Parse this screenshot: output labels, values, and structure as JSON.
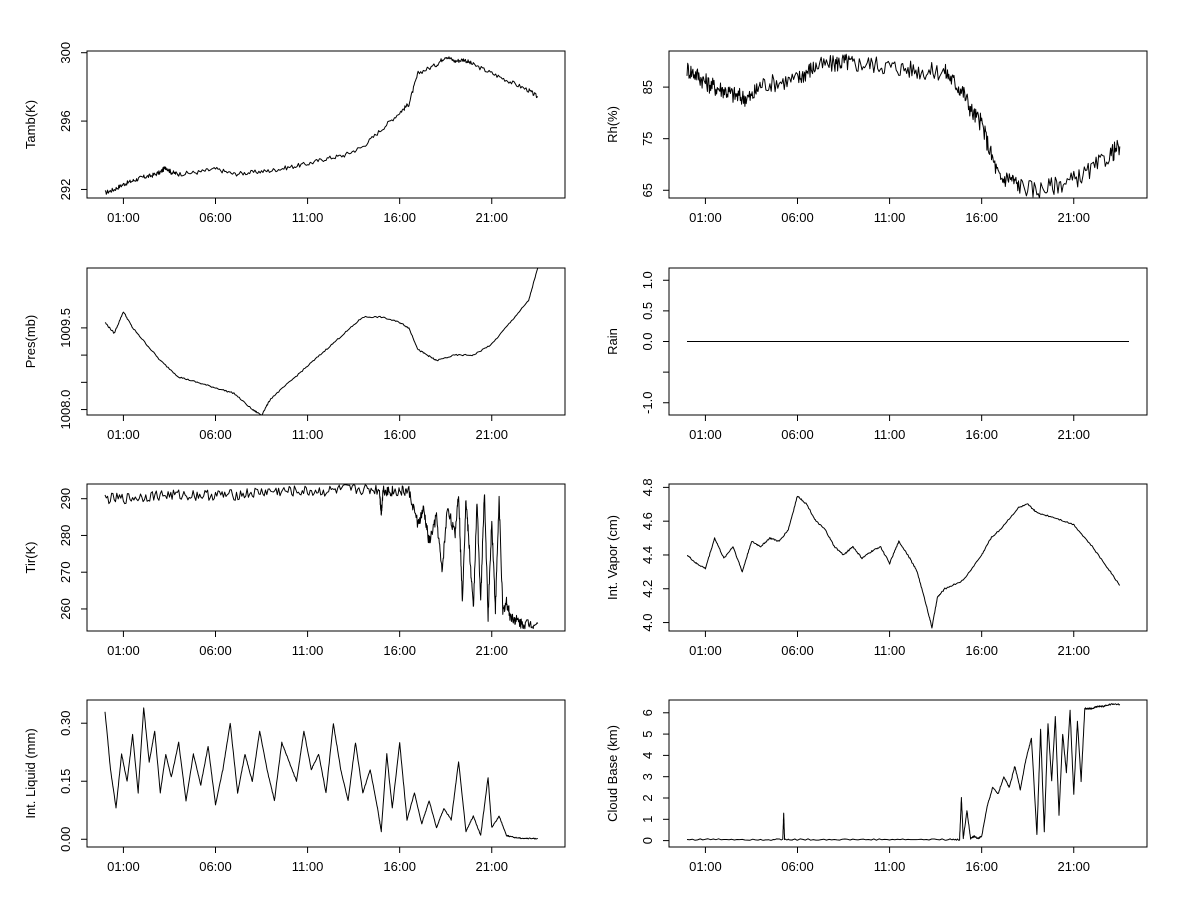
{
  "figure": {
    "x_ticks": [
      "01:00",
      "06:00",
      "11:00",
      "16:00",
      "21:00"
    ],
    "x_tick_hours": [
      1,
      6,
      11,
      16,
      21
    ],
    "x_range_hours": [
      0,
      24
    ]
  },
  "chart_data": [
    {
      "id": "tamb",
      "type": "line",
      "ylabel": "Tamb(K)",
      "ylim": [
        291.5,
        300.1
      ],
      "yticks": [
        292,
        296,
        300
      ],
      "ytick_labels": [
        "292",
        "296",
        "300"
      ],
      "series": [
        {
          "x": [
            0,
            0.5,
            1,
            1.5,
            2,
            2.5,
            3,
            3.3,
            3.6,
            4,
            5,
            6,
            7,
            8,
            9,
            10,
            11,
            12,
            13,
            14,
            15,
            16,
            16.5,
            17,
            18,
            18.5,
            19,
            19.5,
            20,
            21,
            22,
            23,
            23.5
          ],
          "values": [
            291.8,
            292.0,
            292.3,
            292.5,
            292.7,
            292.8,
            293.0,
            293.3,
            293.0,
            292.9,
            293.0,
            293.2,
            292.9,
            293.0,
            293.1,
            293.3,
            293.5,
            293.8,
            294.0,
            294.5,
            295.5,
            296.5,
            297.0,
            298.8,
            299.3,
            299.8,
            299.5,
            299.6,
            299.3,
            298.8,
            298.3,
            297.8,
            297.4
          ]
        }
      ]
    },
    {
      "id": "rh",
      "type": "line",
      "ylabel": "Rh(%)",
      "ylim": [
        63.5,
        92
      ],
      "yticks": [
        65,
        75,
        85
      ],
      "ytick_labels": [
        "65",
        "75",
        "85"
      ],
      "series": [
        {
          "x": [
            0,
            0.5,
            1,
            1.5,
            2,
            2.5,
            3,
            3.5,
            4,
            5,
            6,
            6.5,
            7,
            8,
            8.5,
            9,
            10,
            11,
            12,
            13,
            14,
            14.5,
            15,
            15.5,
            16,
            16.5,
            17,
            17.5,
            18,
            19,
            20,
            21,
            22,
            23,
            23.5
          ],
          "values": [
            88.5,
            87.5,
            86.0,
            85.0,
            84.5,
            83.5,
            83.0,
            83.0,
            85.5,
            86.0,
            86.5,
            88.0,
            89.0,
            89.5,
            90.0,
            89.5,
            89.5,
            89.0,
            88.5,
            88.0,
            88.0,
            86.0,
            84.0,
            80.0,
            78.0,
            72.0,
            67.0,
            67.5,
            66.0,
            65.0,
            66.0,
            67.0,
            69.0,
            72.0,
            73.5
          ]
        }
      ]
    },
    {
      "id": "pres",
      "type": "line",
      "ylabel": "Pres(mb)",
      "ylim": [
        1007.9,
        1010.6
      ],
      "yticks": [
        1008.0,
        1008.5,
        1009.0,
        1009.5
      ],
      "ytick_labels": [
        "1008.0",
        "",
        "",
        "1009.5"
      ],
      "series": [
        {
          "x": [
            0,
            0.5,
            1,
            1.5,
            2,
            3,
            4,
            5,
            6,
            7,
            8,
            8.5,
            9,
            10,
            11,
            12,
            13,
            14,
            15,
            16,
            16.5,
            17,
            17.5,
            18,
            19,
            20,
            21,
            22,
            23,
            23.5
          ],
          "values": [
            1009.6,
            1009.4,
            1009.8,
            1009.5,
            1009.3,
            1008.9,
            1008.6,
            1008.5,
            1008.4,
            1008.3,
            1008.0,
            1007.9,
            1008.2,
            1008.5,
            1008.8,
            1009.1,
            1009.4,
            1009.7,
            1009.7,
            1009.6,
            1009.5,
            1009.1,
            1009.0,
            1008.9,
            1009.0,
            1009.0,
            1009.2,
            1009.6,
            1010.0,
            1010.6
          ]
        }
      ]
    },
    {
      "id": "rain",
      "type": "line",
      "ylabel": "Rain",
      "ylim": [
        -1.2,
        1.2
      ],
      "yticks": [
        -1.0,
        -0.5,
        0.0,
        0.5,
        1.0
      ],
      "ytick_labels": [
        "-1.0",
        "",
        "0.0",
        "0.5",
        "1.0"
      ],
      "series": [
        {
          "x": [
            0,
            24
          ],
          "values": [
            0,
            0
          ]
        }
      ]
    },
    {
      "id": "tir",
      "type": "line",
      "ylabel": "Tir(K)",
      "ylim": [
        254,
        294
      ],
      "yticks": [
        260,
        270,
        280,
        290
      ],
      "ytick_labels": [
        "260",
        "270",
        "280",
        "290"
      ],
      "series": [
        {
          "x": [
            0,
            1,
            2,
            3,
            4,
            5,
            6,
            7,
            8,
            9,
            10,
            11,
            12,
            13,
            14,
            14.9,
            15,
            15.1,
            15.5,
            16,
            16.5,
            17,
            17.3,
            17.6,
            18,
            18.3,
            18.6,
            19,
            19.2,
            19.4,
            19.6,
            19.8,
            20,
            20.2,
            20.4,
            20.6,
            20.8,
            21,
            21.2,
            21.4,
            21.6,
            21.8,
            22,
            22.3,
            22.6,
            23,
            23.5
          ],
          "values": [
            290,
            290,
            290.5,
            291,
            291,
            291,
            291,
            291,
            291.5,
            292,
            292,
            292,
            292,
            292.5,
            292.5,
            292.5,
            286,
            292.5,
            292,
            292,
            292,
            283,
            287,
            278,
            285,
            270,
            288,
            280,
            292,
            262,
            290,
            275,
            260,
            289,
            262,
            292,
            258,
            284,
            260,
            290,
            259,
            262,
            258,
            257,
            256,
            256,
            256
          ]
        }
      ]
    },
    {
      "id": "vapor",
      "type": "line",
      "ylabel": "Int. Vapor (cm)",
      "ylim": [
        3.95,
        4.82
      ],
      "yticks": [
        4.0,
        4.2,
        4.4,
        4.6,
        4.8
      ],
      "ytick_labels": [
        "4.0",
        "4.2",
        "4.4",
        "4.6",
        "4.8"
      ],
      "series": [
        {
          "x": [
            0,
            0.5,
            1,
            1.5,
            2,
            2.5,
            3,
            3.5,
            4,
            4.5,
            5,
            5.5,
            6,
            6.5,
            7,
            7.5,
            8,
            8.5,
            9,
            9.5,
            10,
            10.5,
            11,
            11.5,
            12,
            12.5,
            13,
            13.3,
            13.6,
            14,
            15,
            16,
            16.5,
            17,
            18,
            18.5,
            19,
            20,
            21,
            22,
            23,
            23.5
          ],
          "values": [
            4.4,
            4.35,
            4.32,
            4.5,
            4.38,
            4.45,
            4.3,
            4.48,
            4.45,
            4.5,
            4.48,
            4.55,
            4.75,
            4.7,
            4.6,
            4.55,
            4.45,
            4.4,
            4.45,
            4.38,
            4.42,
            4.45,
            4.35,
            4.48,
            4.4,
            4.3,
            4.1,
            3.97,
            4.15,
            4.2,
            4.25,
            4.4,
            4.5,
            4.55,
            4.68,
            4.7,
            4.65,
            4.62,
            4.58,
            4.45,
            4.3,
            4.22
          ]
        }
      ]
    },
    {
      "id": "liquid",
      "type": "line",
      "ylabel": "Int. Liquid (mm)",
      "ylim": [
        -0.02,
        0.36
      ],
      "yticks": [
        0.0,
        0.15,
        0.3
      ],
      "ytick_labels": [
        "0.00",
        "0.15",
        "0.30"
      ],
      "series": [
        {
          "x": [
            0,
            0.3,
            0.6,
            0.9,
            1.2,
            1.5,
            1.8,
            2.1,
            2.4,
            2.7,
            3,
            3.3,
            3.6,
            4,
            4.4,
            4.8,
            5.2,
            5.6,
            6,
            6.4,
            6.8,
            7.2,
            7.6,
            8,
            8.4,
            8.8,
            9.2,
            9.6,
            10,
            10.4,
            10.8,
            11.2,
            11.6,
            12,
            12.4,
            12.8,
            13.2,
            13.6,
            14,
            14.4,
            14.8,
            15,
            15.3,
            15.6,
            16,
            16.4,
            16.8,
            17.2,
            17.6,
            18,
            18.4,
            18.8,
            19.2,
            19.6,
            20,
            20.4,
            20.8,
            21,
            21.4,
            21.8,
            22.2,
            22.6,
            23,
            23.5
          ],
          "values": [
            0.33,
            0.18,
            0.08,
            0.22,
            0.15,
            0.27,
            0.12,
            0.34,
            0.2,
            0.28,
            0.12,
            0.22,
            0.16,
            0.25,
            0.1,
            0.22,
            0.14,
            0.24,
            0.09,
            0.18,
            0.3,
            0.12,
            0.22,
            0.15,
            0.28,
            0.18,
            0.1,
            0.25,
            0.2,
            0.15,
            0.28,
            0.18,
            0.22,
            0.12,
            0.3,
            0.18,
            0.1,
            0.25,
            0.12,
            0.18,
            0.08,
            0.02,
            0.22,
            0.08,
            0.25,
            0.05,
            0.12,
            0.04,
            0.1,
            0.03,
            0.08,
            0.05,
            0.2,
            0.02,
            0.06,
            0.01,
            0.16,
            0.03,
            0.06,
            0.01,
            0.005,
            0.003,
            0.002,
            0.002
          ]
        }
      ]
    },
    {
      "id": "cloudbase",
      "type": "line",
      "ylabel": "Cloud Base (km)",
      "ylim": [
        -0.3,
        6.6
      ],
      "yticks": [
        0,
        1,
        2,
        3,
        4,
        5,
        6
      ],
      "ytick_labels": [
        "0",
        "1",
        "2",
        "3",
        "4",
        "5",
        "6"
      ],
      "series": [
        {
          "x": [
            0,
            2,
            4,
            5.2,
            5.25,
            5.3,
            6,
            8,
            10,
            12,
            14,
            14.8,
            14.9,
            15,
            15.2,
            15.4,
            15.6,
            15.8,
            16,
            16.3,
            16.6,
            16.9,
            17.2,
            17.5,
            17.8,
            18.1,
            18.4,
            18.7,
            19,
            19.2,
            19.4,
            19.6,
            19.8,
            20,
            20.2,
            20.4,
            20.6,
            20.8,
            21,
            21.2,
            21.4,
            21.6,
            21.8,
            22,
            22.3,
            22.6,
            23,
            23.5
          ],
          "values": [
            0.05,
            0.06,
            0.05,
            0.05,
            1.3,
            0.05,
            0.05,
            0.05,
            0.05,
            0.05,
            0.05,
            0.05,
            2.0,
            0.1,
            1.4,
            0.1,
            0.2,
            0.1,
            0.2,
            1.6,
            2.5,
            2.2,
            3.0,
            2.5,
            3.5,
            2.4,
            3.8,
            4.8,
            0.3,
            5.2,
            0.4,
            5.5,
            2.8,
            5.8,
            1.2,
            5.0,
            3.2,
            6.1,
            2.2,
            5.6,
            2.8,
            6.2,
            6.2,
            6.2,
            6.3,
            6.3,
            6.4,
            6.4
          ]
        }
      ]
    }
  ]
}
